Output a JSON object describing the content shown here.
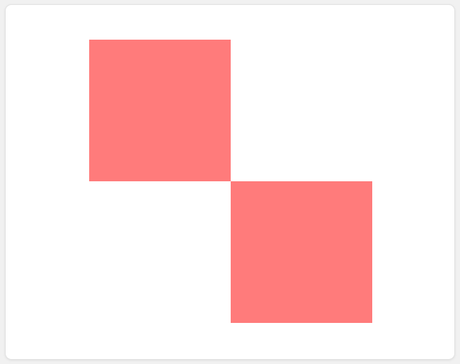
{
  "canvas": {
    "background_color": "#ffffff",
    "shapes": [
      {
        "kind": "square",
        "color": "#ff7b7b"
      },
      {
        "kind": "square",
        "color": "#ff7b7b"
      }
    ]
  }
}
